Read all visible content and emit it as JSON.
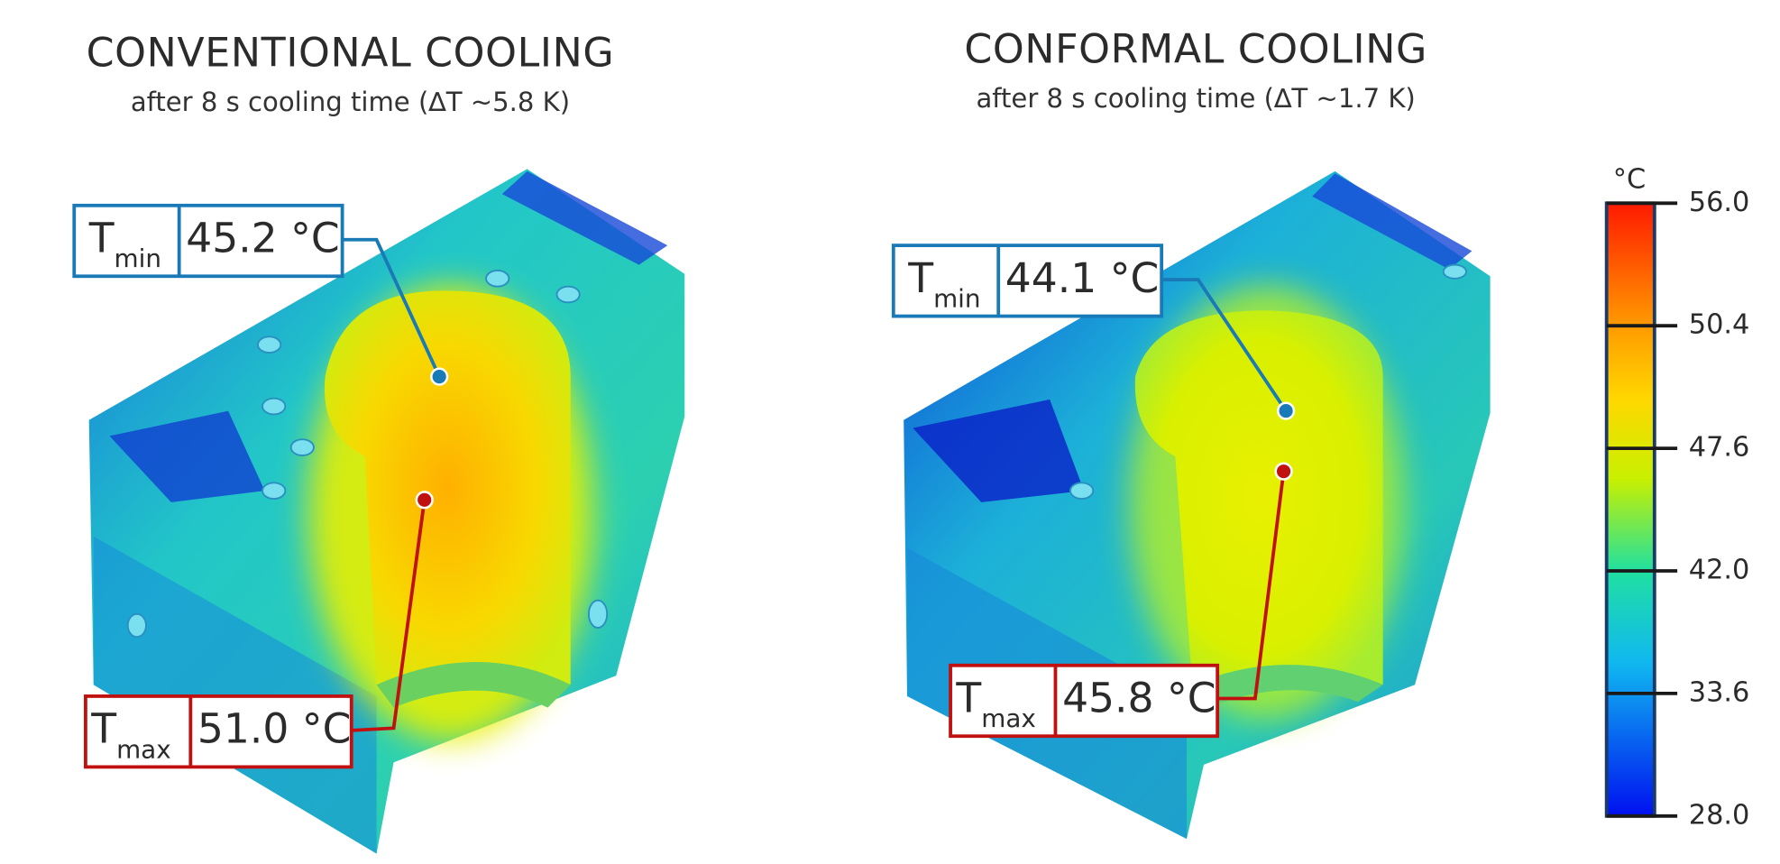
{
  "panels": [
    {
      "title": "CONVENTIONAL COOLING",
      "subtitle": "after 8 s cooling time (∆T ~5.8 K)",
      "tmin": {
        "symbol": "T",
        "subscript": "min",
        "value": "45.2 °C"
      },
      "tmax": {
        "symbol": "T",
        "subscript": "max",
        "value": "51.0 °C"
      }
    },
    {
      "title": "CONFORMAL COOLING",
      "subtitle": "after 8 s cooling time (∆T ~1.7 K)",
      "tmin": {
        "symbol": "T",
        "subscript": "min",
        "value": "44.1 °C"
      },
      "tmax": {
        "symbol": "T",
        "subscript": "max",
        "value": "45.8 °C"
      }
    }
  ],
  "colorbar": {
    "unit": "°C",
    "labels": [
      "56.0",
      "50.4",
      "47.6",
      "42.0",
      "33.6",
      "28.0"
    ]
  }
}
